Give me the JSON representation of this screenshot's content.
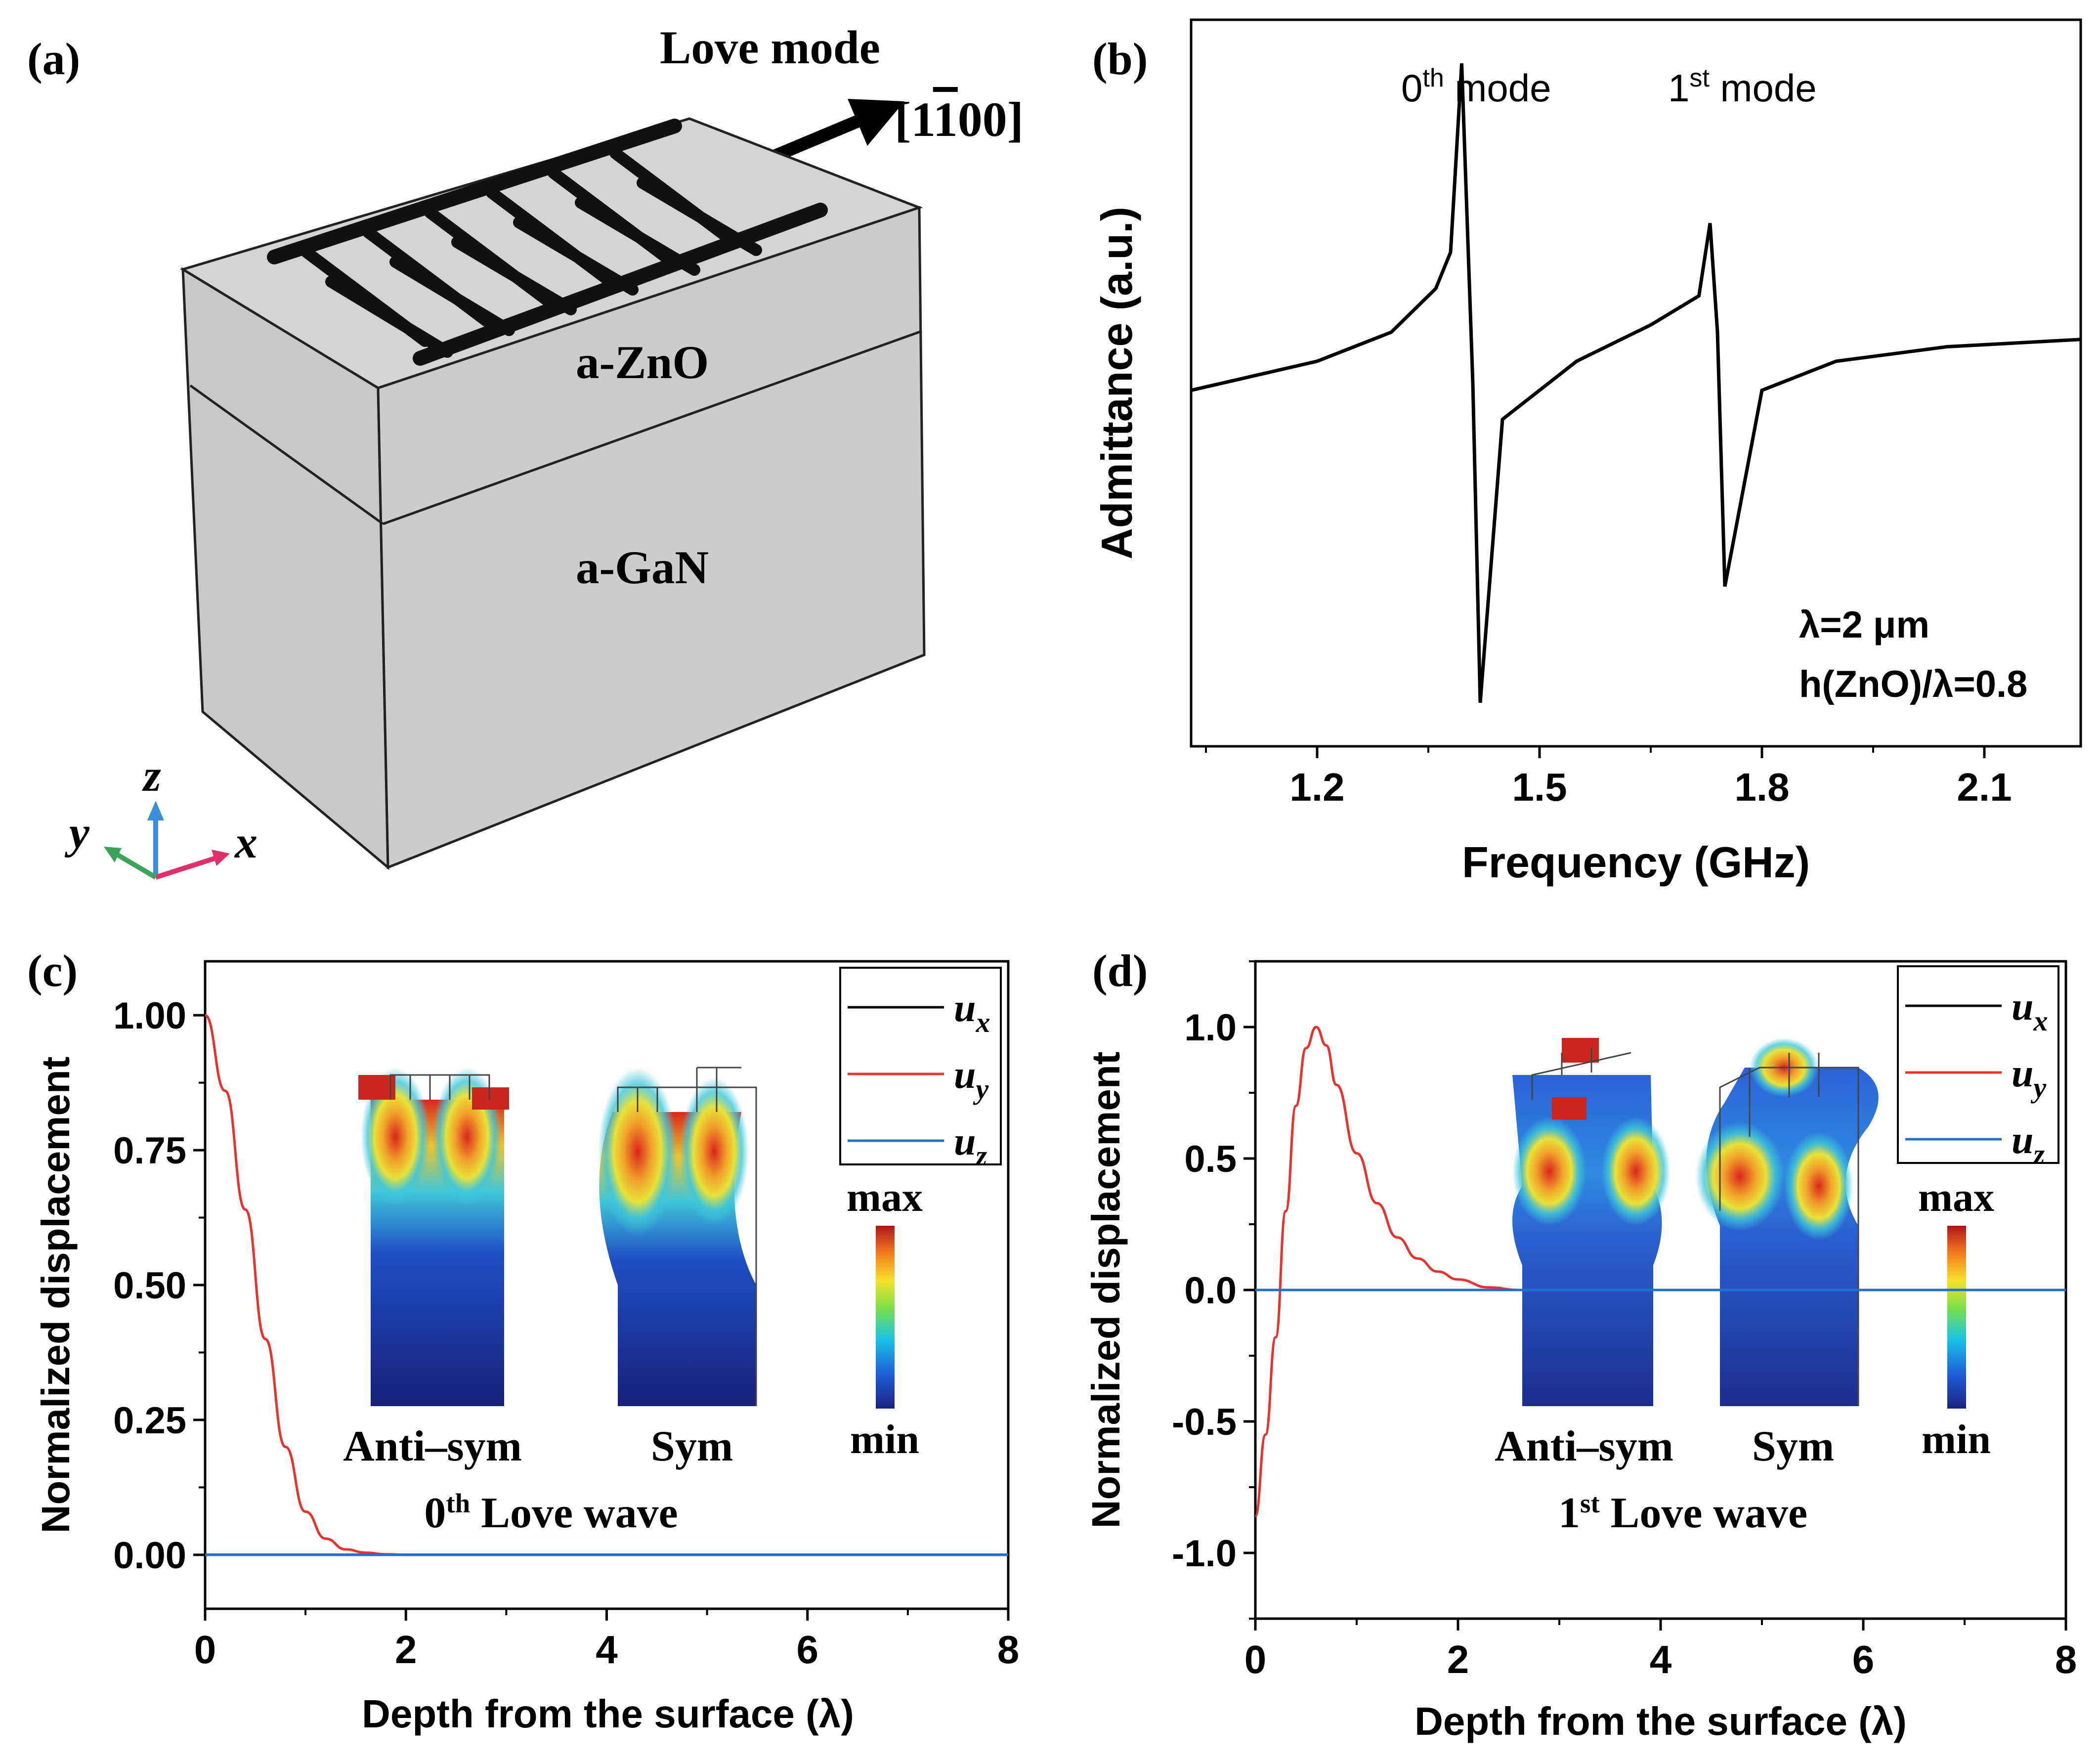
{
  "colors": {
    "ux": "#000000",
    "uy": "#e8322e",
    "uz": "#1f6fd1",
    "box": "#d0d0d0",
    "axis_x": "#e0306a",
    "axis_y": "#3aa55a",
    "axis_z": "#3a8fd8"
  },
  "panel_a": {
    "label": "(a)",
    "title": "Love mode",
    "direction": "[1¯100]",
    "dir_1": "[1",
    "dir_bar": "1",
    "dir_rest": "00]",
    "layer_top": "a-ZnO",
    "layer_bottom": "a-GaN",
    "axis_x": "x",
    "axis_y": "y",
    "axis_z": "z"
  },
  "panel_b": {
    "label": "(b)",
    "peak0_base": "0",
    "peak0_sup": "th",
    "peak0_text": " mode",
    "peak1_base": "1",
    "peak1_sup": "st",
    "peak1_text": " mode",
    "param1": "λ=2 μm",
    "param2": "h(ZnO)/λ=0.8"
  },
  "panel_c": {
    "label": "(c)",
    "inset_left": "Anti–sym",
    "inset_right": "Sym",
    "scale_max": "max",
    "scale_min": "min",
    "caption_base": "0",
    "caption_sup": "th",
    "caption_text": " Love wave"
  },
  "panel_d": {
    "label": "(d)",
    "inset_left": "Anti–sym",
    "inset_right": "Sym",
    "scale_max": "max",
    "scale_min": "min",
    "caption_base": "1",
    "caption_sup": "st",
    "caption_text": " Love wave"
  },
  "chart_data": [
    {
      "panel": "b",
      "type": "line",
      "title": "",
      "xlabel": "Frequency (GHz)",
      "ylabel": "Admittance (a.u.)",
      "xlim": [
        1.03,
        2.23
      ],
      "ylim": [
        0,
        1
      ],
      "xticks": [
        1.2,
        1.5,
        1.8,
        2.1
      ],
      "xtick_labels": [
        "1.2",
        "1.5",
        "1.8",
        "2.1"
      ],
      "yticks": [],
      "series": [
        {
          "name": "admittance",
          "x": [
            1.03,
            1.2,
            1.3,
            1.36,
            1.38,
            1.395,
            1.41,
            1.42,
            1.45,
            1.55,
            1.65,
            1.715,
            1.73,
            1.74,
            1.75,
            1.8,
            1.9,
            2.05,
            2.23
          ],
          "y": [
            0.49,
            0.53,
            0.57,
            0.63,
            0.68,
            0.94,
            0.5,
            0.06,
            0.45,
            0.53,
            0.58,
            0.62,
            0.72,
            0.57,
            0.22,
            0.49,
            0.53,
            0.55,
            0.56
          ]
        }
      ],
      "peaks": [
        {
          "name": "0th mode",
          "f_max": 1.395,
          "f_min": 1.42
        },
        {
          "name": "1st mode",
          "f_max": 1.74,
          "f_min": 1.75
        }
      ],
      "annotations": [
        "λ=2 μm",
        "h(ZnO)/λ=0.8"
      ]
    },
    {
      "panel": "c",
      "type": "line",
      "title": "",
      "xlabel": "Depth from the surface (λ)",
      "ylabel": "Normalized displacement",
      "xlim": [
        0,
        8
      ],
      "ylim": [
        -0.1,
        1.1
      ],
      "xticks": [
        0,
        2,
        4,
        6,
        8
      ],
      "yticks": [
        0,
        0.25,
        0.5,
        0.75,
        1.0
      ],
      "ytick_labels": [
        "0.00",
        "0.25",
        "0.50",
        "0.75",
        "1.00"
      ],
      "legend": [
        "u_x",
        "u_y",
        "u_z"
      ],
      "legend_position": "top-right",
      "series": [
        {
          "name": "u_x",
          "x": [
            0,
            8
          ],
          "y": [
            0,
            0
          ]
        },
        {
          "name": "u_y",
          "x": [
            0,
            0.2,
            0.4,
            0.6,
            0.8,
            1.0,
            1.2,
            1.4,
            1.6,
            1.8,
            2.0,
            8
          ],
          "y": [
            1.0,
            0.86,
            0.64,
            0.4,
            0.2,
            0.08,
            0.03,
            0.01,
            0.004,
            0.001,
            0,
            0
          ]
        },
        {
          "name": "u_z",
          "x": [
            0,
            8
          ],
          "y": [
            0,
            0
          ]
        }
      ]
    },
    {
      "panel": "d",
      "type": "line",
      "title": "",
      "xlabel": "Depth from the surface (λ)",
      "ylabel": "Normalized displacement",
      "xlim": [
        0,
        8
      ],
      "ylim": [
        -1.25,
        1.25
      ],
      "xticks": [
        0,
        2,
        4,
        6,
        8
      ],
      "yticks": [
        -1.0,
        -0.5,
        0,
        0.5,
        1.0
      ],
      "ytick_labels": [
        "-1.0",
        "-0.5",
        "0.0",
        "0.5",
        "1.0"
      ],
      "legend": [
        "u_x",
        "u_y",
        "u_z"
      ],
      "legend_position": "top-right",
      "series": [
        {
          "name": "u_x",
          "x": [
            0,
            8
          ],
          "y": [
            0,
            0
          ]
        },
        {
          "name": "u_y",
          "x": [
            0,
            0.1,
            0.2,
            0.3,
            0.4,
            0.5,
            0.6,
            0.7,
            0.8,
            1.0,
            1.2,
            1.4,
            1.6,
            1.8,
            2.0,
            2.3,
            2.6,
            8
          ],
          "y": [
            -0.86,
            -0.55,
            -0.18,
            0.3,
            0.7,
            0.92,
            1.0,
            0.93,
            0.78,
            0.52,
            0.33,
            0.2,
            0.12,
            0.07,
            0.04,
            0.01,
            0,
            0
          ]
        },
        {
          "name": "u_z",
          "x": [
            0,
            8
          ],
          "y": [
            0,
            0
          ]
        }
      ]
    }
  ]
}
